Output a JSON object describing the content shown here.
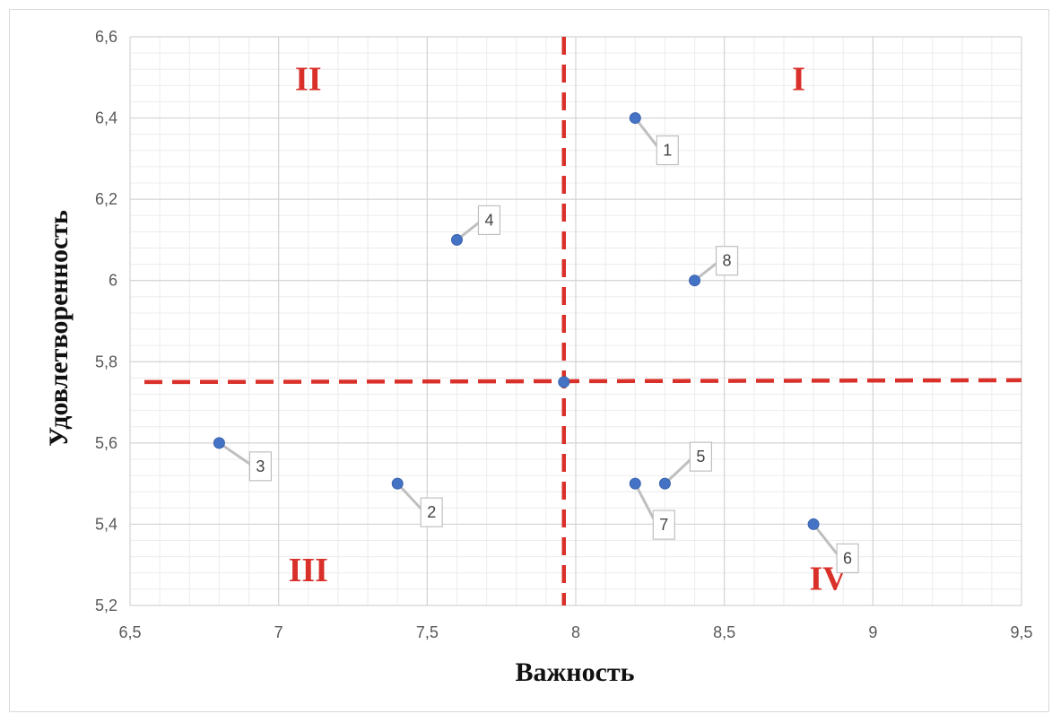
{
  "chart_data": {
    "type": "scatter",
    "xlabel": "Важность",
    "ylabel": "Удовлетворенность",
    "xlim": [
      6.5,
      9.5
    ],
    "ylim": [
      5.2,
      6.6
    ],
    "x_ticks": [
      6.5,
      7,
      7.5,
      8,
      8.5,
      9,
      9.5
    ],
    "y_ticks": [
      5.2,
      5.4,
      5.6,
      5.8,
      6,
      6.2,
      6.4,
      6.6
    ],
    "x_tick_labels": [
      "6,5",
      "7",
      "7,5",
      "8",
      "8,5",
      "9",
      "9,5"
    ],
    "y_tick_labels": [
      "5,2",
      "5,4",
      "5,6",
      "5,8",
      "6",
      "6,2",
      "6,4",
      "6,6"
    ],
    "grid": true,
    "minor_grid": true,
    "points": [
      {
        "label": "1",
        "x": 8.2,
        "y": 6.4
      },
      {
        "label": "2",
        "x": 7.4,
        "y": 5.5
      },
      {
        "label": "3",
        "x": 6.8,
        "y": 5.6
      },
      {
        "label": "4",
        "x": 7.6,
        "y": 6.1
      },
      {
        "label": "5",
        "x": 8.3,
        "y": 5.5
      },
      {
        "label": "6",
        "x": 8.8,
        "y": 5.4
      },
      {
        "label": "7",
        "x": 8.2,
        "y": 5.5
      },
      {
        "label": "8",
        "x": 8.4,
        "y": 6.0
      },
      {
        "label": "",
        "x": 7.96,
        "y": 5.75
      }
    ],
    "reference_lines": {
      "x": 7.96,
      "y": 5.75,
      "color": "#d9302a",
      "style": "dashed"
    },
    "quadrants": [
      {
        "label": "I",
        "x": 8.75,
        "y": 6.5
      },
      {
        "label": "II",
        "x": 7.1,
        "y": 6.5
      },
      {
        "label": "III",
        "x": 7.1,
        "y": 5.29
      },
      {
        "label": "IV",
        "x": 8.85,
        "y": 5.27
      }
    ],
    "colors": {
      "point": "#4472c4",
      "reference": "#d9302a",
      "quadrant_text": "#d9302a"
    }
  }
}
